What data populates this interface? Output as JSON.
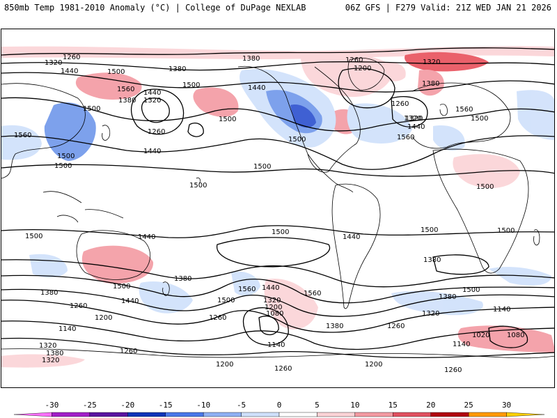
{
  "header": {
    "title_left": "850mb Temp 1981-2010 Anomaly (°C) | College of DuPage NEXLAB",
    "title_right": "06Z GFS | F279 Valid: 21Z WED JAN 21 2026"
  },
  "colors": {
    "cold_strong": "#2b4fcf",
    "cold_mid": "#6f97ea",
    "cold_light": "#cfe0fb",
    "warm_light": "#fbd3d6",
    "warm_mid": "#f39aa2",
    "warm_strong": "#e8505c",
    "contour": "#000000",
    "coast": "#000000"
  },
  "colorbar": {
    "tick_labels": [
      "-30",
      "-25",
      "-20",
      "-15",
      "-10",
      "-5",
      "0",
      "5",
      "10",
      "15",
      "20",
      "25",
      "30"
    ],
    "bins": [
      {
        "range": "-35 to -30",
        "color": "#ff70ff"
      },
      {
        "range": "-30 to -25",
        "color": "#a21fc8"
      },
      {
        "range": "-25 to -20",
        "color": "#5a14a0"
      },
      {
        "range": "-20 to -15",
        "color": "#1035b8"
      },
      {
        "range": "-15 to -10",
        "color": "#4a78e8"
      },
      {
        "range": "-10 to -5",
        "color": "#8fb0f3"
      },
      {
        "range": "-5 to 0",
        "color": "#cfe0fb"
      },
      {
        "range": "0 to 5",
        "color": "#ffffff"
      },
      {
        "range": "5 to 10",
        "color": "#fbd3d6"
      },
      {
        "range": "10 to 15",
        "color": "#f39aa2"
      },
      {
        "range": "15 to 20",
        "color": "#e05060"
      },
      {
        "range": "20 to 25",
        "color": "#b00010"
      },
      {
        "range": "25 to 30",
        "color": "#ff9a00"
      },
      {
        "range": "30 to 35",
        "color": "#ffd000"
      }
    ]
  },
  "height_labels": [
    "1260",
    "1320",
    "1440",
    "1500",
    "1380",
    "1560",
    "1500",
    "1440",
    "1320",
    "1260",
    "1380",
    "1500",
    "1560",
    "1500",
    "1500",
    "1500",
    "1440",
    "1500",
    "1500",
    "1380",
    "1260",
    "1200",
    "1320",
    "1320",
    "1260",
    "1380",
    "1320",
    "1440",
    "1560",
    "1440",
    "1500",
    "1560",
    "1500",
    "1500",
    "1500",
    "1500",
    "1500",
    "1440",
    "1440",
    "1500",
    "1500",
    "1380",
    "1260",
    "1440",
    "1380",
    "1560",
    "1440",
    "1560",
    "1500",
    "1500",
    "1320",
    "1200",
    "1320",
    "1380",
    "1080",
    "1260",
    "1140",
    "1140",
    "1260",
    "1380",
    "1140",
    "1020",
    "1080",
    "1140",
    "1320",
    "1380",
    "1320",
    "1200",
    "1260",
    "1200",
    "1260",
    "1200",
    "1260",
    "1380"
  ]
}
